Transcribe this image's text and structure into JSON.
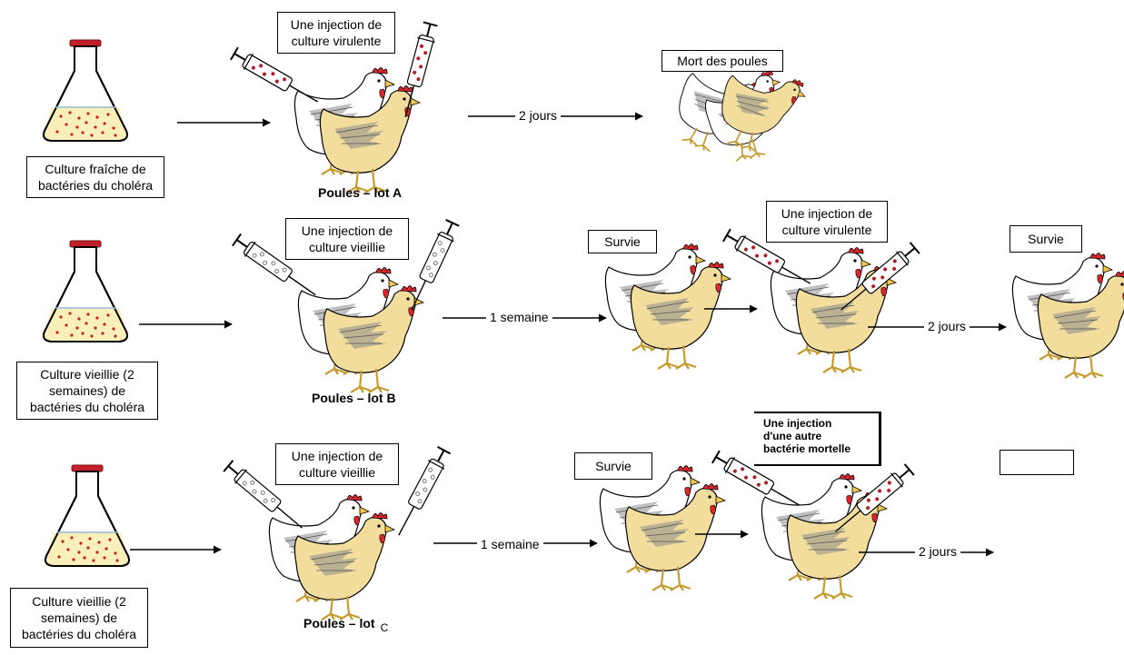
{
  "colors": {
    "hen_yellow": "#f2dd9c",
    "hen_white": "#ffffff",
    "comb_red": "#d9262b",
    "culture_liquid": "#f8f0b8",
    "bacteria_dot": "#c8202a",
    "syringe_dot_dark": "#b01e23",
    "syringe_dot_light": "#9a9a9a",
    "flask_cap": "#c21f2a"
  },
  "rows": {
    "lot_a": {
      "culture_label": "Culture fraîche de\nbactéries du choléra",
      "injection_label": "Une injection de\nculture virulente",
      "group_label": "Poules – lot A",
      "delay_label": "2 jours",
      "result_label": "Mort des poules"
    },
    "lot_b": {
      "culture_label": "Culture vieillie (2\nsemaines) de\nbactéries du choléra",
      "injection_label": "Une injection de\nculture vieillie",
      "group_label": "Poules – lot B",
      "delay_label": "1 semaine",
      "result_label": "Survie",
      "second_injection_label": "Une injection de\nculture virulente",
      "second_delay_label": "2 jours",
      "final_result_label": "Survie"
    },
    "lot_c": {
      "culture_label": "Culture vieillie (2\nsemaines) de\nbactéries du choléra",
      "injection_label": "Une injection de\nculture vieillie",
      "group_label": "Poules – lot",
      "group_suffix": "C",
      "delay_label": "1 semaine",
      "result_label": "Survie",
      "second_injection_label": "Une injection\nd'une autre\nbactérie mortelle",
      "second_delay_label": "2 jours",
      "final_result_label": ""
    }
  }
}
